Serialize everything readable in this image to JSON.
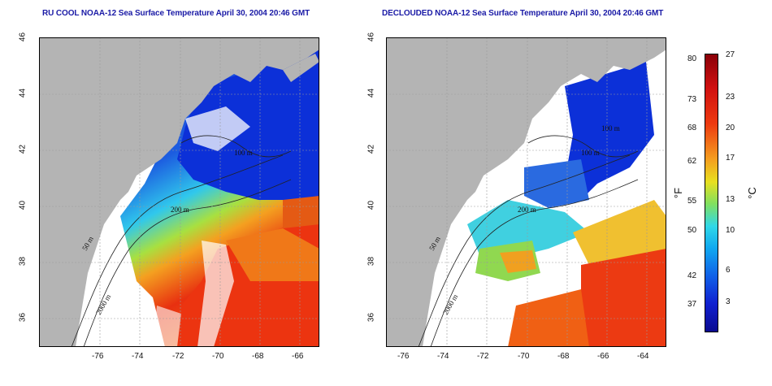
{
  "left": {
    "title": "RU COOL NOAA-12 Sea Surface Temperature April 30, 2004 20:46 GMT",
    "contours": {
      "c50": "50 m",
      "c100": "100 m",
      "c200": "200 m",
      "c2000": "2000 m"
    }
  },
  "right": {
    "title": "DECLOUDED NOAA-12 Sea Surface Temperature April 30, 2004 20:46 GMT",
    "contours": {
      "c50": "50 m",
      "c100": "100 m",
      "c100b": "100 m",
      "c200": "200 m",
      "c2000": "2000 m"
    }
  },
  "axes": {
    "x_ticks": [
      "-76",
      "-74",
      "-72",
      "-70",
      "-68",
      "-66",
      "-64"
    ],
    "y_ticks": [
      "36",
      "38",
      "40",
      "42",
      "44",
      "46"
    ]
  },
  "colorbar": {
    "fahrenheit": [
      "80",
      "73",
      "68",
      "62",
      "55",
      "50",
      "42",
      "37"
    ],
    "celsius": [
      "27",
      "23",
      "20",
      "17",
      "13",
      "10",
      "6",
      "3"
    ],
    "f_unit": "°F",
    "c_unit": "°C"
  },
  "colors": {
    "land": "#b4b4b4",
    "nodata": "#ffffff",
    "cold": "#0a2ad8",
    "warm": "#e4200c"
  }
}
